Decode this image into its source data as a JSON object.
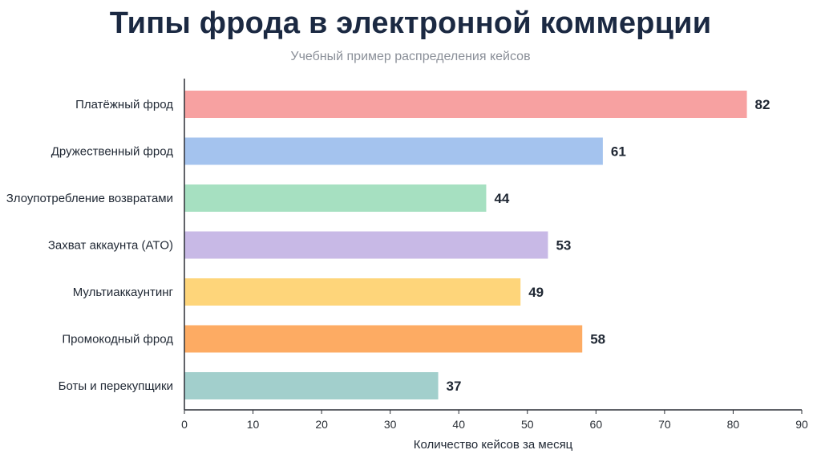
{
  "chart_data": {
    "type": "bar",
    "orientation": "horizontal",
    "title": "Типы фрода в электронной коммерции",
    "subtitle": "Учебный пример распределения кейсов",
    "xlabel": "Количество кейсов за месяц",
    "ylabel": "",
    "xlim": [
      0,
      90
    ],
    "xticks": [
      0,
      10,
      20,
      30,
      40,
      50,
      60,
      70,
      80,
      90
    ],
    "grid": false,
    "categories": [
      "Платёжный фрод",
      "Дружественный фрод",
      "Злоупотребление возвратами",
      "Захват аккаунта (ATO)",
      "Мультиаккаунтинг",
      "Промокодный фрод",
      "Боты и перекупщики"
    ],
    "values": [
      82,
      61,
      44,
      53,
      49,
      58,
      37
    ],
    "colors": [
      "#f7a1a1",
      "#a4c3ee",
      "#a6e0c1",
      "#c8b9e6",
      "#fed57a",
      "#fdab63",
      "#a2cfcc"
    ]
  }
}
